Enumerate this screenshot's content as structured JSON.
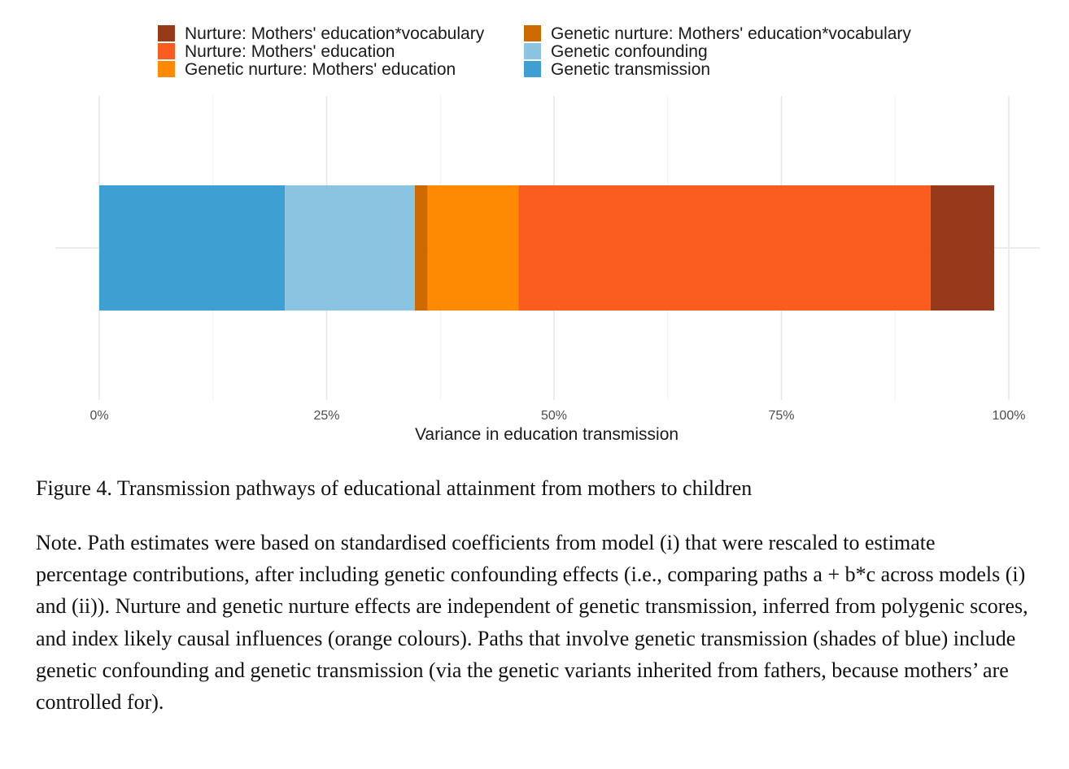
{
  "chart_data": {
    "type": "bar",
    "orientation": "horizontal",
    "stacked": true,
    "xlabel": "Variance in education transmission",
    "x_ticks": [
      "0%",
      "25%",
      "50%",
      "75%",
      "100%"
    ],
    "xlim": [
      0,
      100
    ],
    "grid": true,
    "legend_position": "top",
    "legend": [
      {
        "name": "Nurture: Mothers' education*vocabulary",
        "color": "#963A19"
      },
      {
        "name": "Genetic nurture: Mothers' education*vocabulary",
        "color": "#CC6A00"
      },
      {
        "name": "Nurture: Mothers' education",
        "color": "#FA5B1E"
      },
      {
        "name": "Genetic confounding",
        "color": "#8BC4E0"
      },
      {
        "name": "Genetic nurture: Mothers' education",
        "color": "#FE8A03"
      },
      {
        "name": "Genetic transmission",
        "color": "#3E9FD2"
      }
    ],
    "series": [
      {
        "name": "Genetic transmission",
        "value": 20.4,
        "color": "#3E9FD2"
      },
      {
        "name": "Genetic confounding",
        "value": 14.3,
        "color": "#8BC4E0"
      },
      {
        "name": "Genetic nurture: Mothers' education*vocabulary",
        "value": 1.4,
        "color": "#CC6A00"
      },
      {
        "name": "Genetic nurture: Mothers' education",
        "value": 10.0,
        "color": "#FE8A03"
      },
      {
        "name": "Nurture: Mothers' education",
        "value": 45.3,
        "color": "#FA5B1E"
      },
      {
        "name": "Nurture: Mothers' education*vocabulary",
        "value": 7.0,
        "color": "#963A19"
      }
    ]
  },
  "caption": "Figure 4. Transmission pathways of educational attainment from mothers to children",
  "note": "Note. Path estimates were based on standardised coefficients from model (i) that were rescaled to estimate percentage contributions, after including genetic confounding effects (i.e., comparing paths a + b*c across models (i) and (ii)). Nurture and genetic nurture effects are independent of genetic transmission, inferred from polygenic scores, and index likely causal influences (orange colours). Paths that involve genetic transmission (shades of blue) include genetic confounding and genetic transmission (via the genetic variants inherited from fathers, because mothers’ are controlled for)."
}
